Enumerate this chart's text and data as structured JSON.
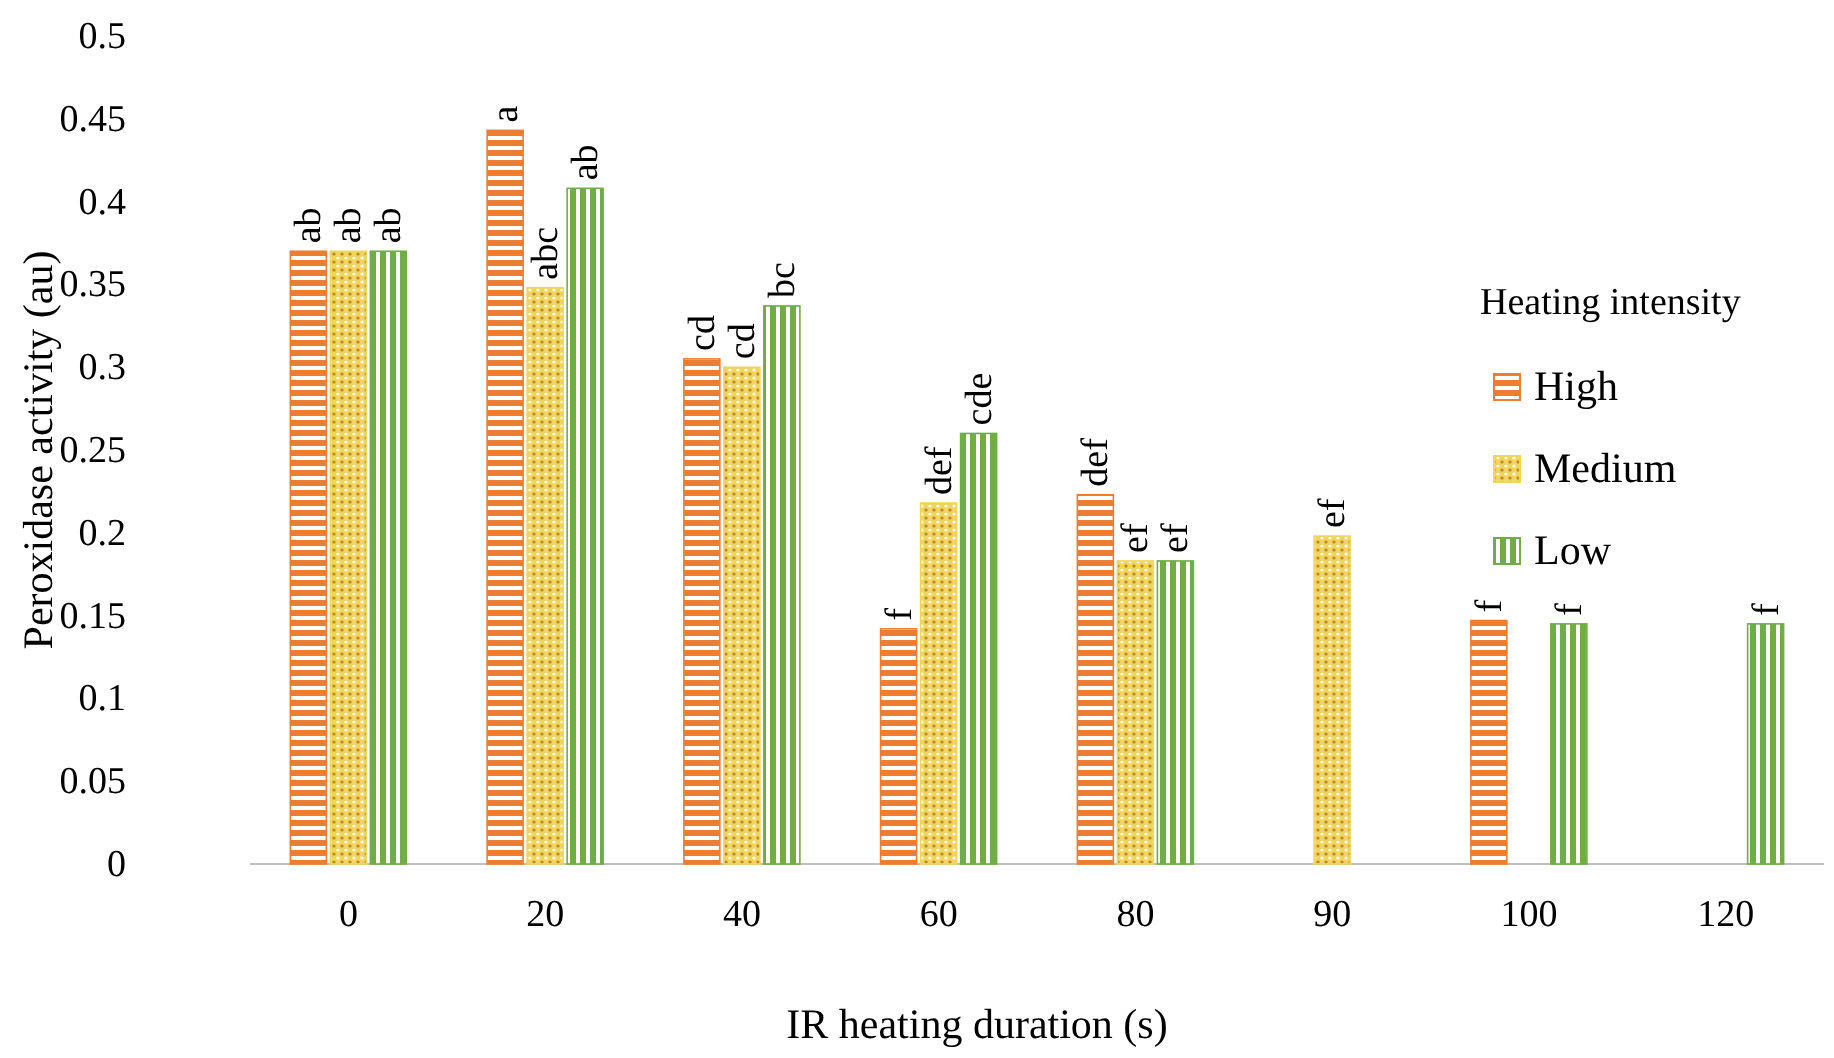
{
  "chart_data": {
    "type": "bar",
    "xlabel": "IR heating duration (s)",
    "ylabel": "Peroxidase activity (au)",
    "legend_title": "Heating intensity",
    "legend": "right",
    "grid": false,
    "categories": [
      "0",
      "20",
      "40",
      "60",
      "80",
      "90",
      "100",
      "120"
    ],
    "ylim": [
      0,
      0.5
    ],
    "yticks": [
      {
        "value": 0,
        "label": "0"
      },
      0.05,
      0.1,
      0.15,
      0.2,
      0.25,
      0.3,
      0.35,
      0.4,
      0.45,
      0.5
    ],
    "series": [
      {
        "name": "High",
        "color": "#ed7d31",
        "values": [
          0.37,
          0.443,
          0.305,
          0.142,
          0.223,
          null,
          0.147,
          null
        ]
      },
      {
        "name": "Medium",
        "color": "#f2d45c",
        "values": [
          0.37,
          0.348,
          0.3,
          0.218,
          0.183,
          0.198,
          null,
          null
        ]
      },
      {
        "name": "Low",
        "color": "#70ad47",
        "values": [
          0.37,
          0.408,
          0.337,
          0.26,
          0.183,
          null,
          0.145,
          0.145
        ]
      }
    ],
    "annotations": [
      "ab",
      "ab",
      "ab",
      "a",
      "abc",
      "ab",
      "cd",
      "cd",
      "bc",
      "f",
      "def",
      "cde",
      "def",
      "ef",
      "ef",
      "ef",
      "f",
      "f",
      "f"
    ]
  }
}
